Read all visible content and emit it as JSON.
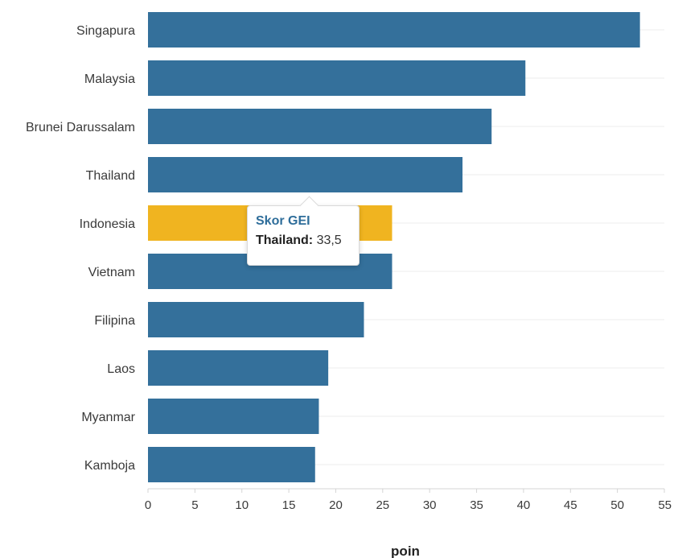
{
  "chart_data": {
    "type": "bar",
    "orientation": "horizontal",
    "categories": [
      "Singapura",
      "Malaysia",
      "Brunei Darussalam",
      "Thailand",
      "Indonesia",
      "Vietnam",
      "Filipina",
      "Laos",
      "Myanmar",
      "Kamboja"
    ],
    "values": [
      52.4,
      40.2,
      36.6,
      33.5,
      26.0,
      26.0,
      23.0,
      19.2,
      18.2,
      17.8
    ],
    "highlight_category": "Indonesia",
    "xlabel": "poin",
    "xlim": [
      0,
      55
    ],
    "xticks": [
      0,
      5,
      10,
      15,
      20,
      25,
      30,
      35,
      40,
      45,
      50,
      55
    ],
    "grid": "horizontal light lines"
  },
  "colors": {
    "bar": "#34709b",
    "highlight": "#f0b420",
    "grid": "#ececec",
    "axis": "#d4d4d4"
  },
  "tooltip": {
    "title": "Skor GEI",
    "country": "Thailand:",
    "value": "33,5"
  }
}
